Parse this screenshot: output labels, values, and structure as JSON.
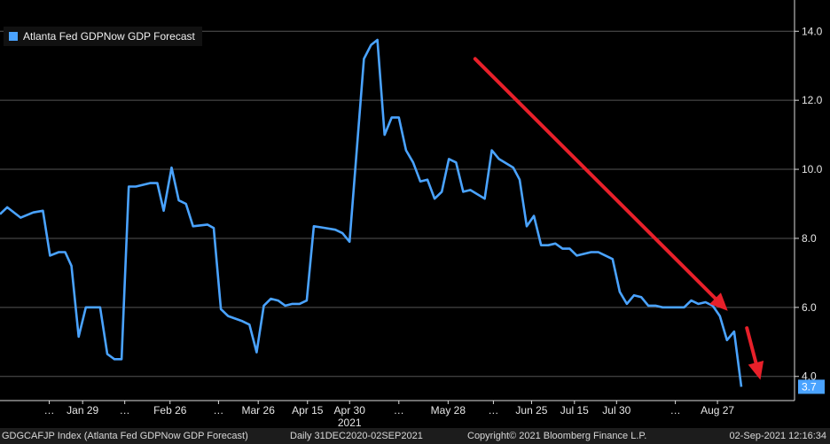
{
  "legend": {
    "label": "Atlanta Fed GDPNow GDP Forecast"
  },
  "footer": {
    "index": "GDGCAFJP Index (Atlanta Fed GDPNow GDP Forecast)",
    "range": "Daily 31DEC2020-02SEP2021",
    "copyright": "Copyright© 2021 Bloomberg Finance L.P.",
    "timestamp": "02-Sep-2021 12:16:34"
  },
  "chart_data": {
    "type": "line",
    "x_index_range": [
      0,
      100
    ],
    "ylim": [
      3.3,
      14.7
    ],
    "y_ticks": [
      "4.0",
      "6.0",
      "8.0",
      "10.0",
      "12.0",
      "14.0"
    ],
    "x_tick_labels": [
      "…",
      "Jan 29",
      "…",
      "Feb 26",
      "…",
      "Mar 26",
      "Apr 15",
      "Apr 30",
      "…",
      "May 28",
      "…",
      "Jun 25",
      "Jul 15",
      "Jul 30",
      "…",
      "Aug 27"
    ],
    "x_tick_pos": [
      6.2,
      10.4,
      15.7,
      21.4,
      27.5,
      32.5,
      38.7,
      44.0,
      50.2,
      56.4,
      62.1,
      66.9,
      72.3,
      77.6,
      85.0,
      90.3
    ],
    "year_label": "2021",
    "series": [
      {
        "name": "Atlanta Fed GDPNow GDP Forecast",
        "color": "#4aa3ff",
        "last_value_label": "3.7",
        "points": [
          [
            0.0,
            8.7
          ],
          [
            0.9,
            8.9
          ],
          [
            2.6,
            8.6
          ],
          [
            4.2,
            8.75
          ],
          [
            5.4,
            8.8
          ],
          [
            6.3,
            7.5
          ],
          [
            7.4,
            7.6
          ],
          [
            8.2,
            7.6
          ],
          [
            9.0,
            7.2
          ],
          [
            9.9,
            5.15
          ],
          [
            10.8,
            6.0
          ],
          [
            12.6,
            6.0
          ],
          [
            13.5,
            4.65
          ],
          [
            14.4,
            4.5
          ],
          [
            15.3,
            4.5
          ],
          [
            16.2,
            9.5
          ],
          [
            17.1,
            9.5
          ],
          [
            18.9,
            9.6
          ],
          [
            19.8,
            9.6
          ],
          [
            20.6,
            8.8
          ],
          [
            21.6,
            10.05
          ],
          [
            22.5,
            9.1
          ],
          [
            23.4,
            9.0
          ],
          [
            24.3,
            8.35
          ],
          [
            26.1,
            8.4
          ],
          [
            26.9,
            8.3
          ],
          [
            27.8,
            5.95
          ],
          [
            28.7,
            5.75
          ],
          [
            30.5,
            5.6
          ],
          [
            31.4,
            5.5
          ],
          [
            32.3,
            4.7
          ],
          [
            33.2,
            6.05
          ],
          [
            34.1,
            6.25
          ],
          [
            35.0,
            6.2
          ],
          [
            35.9,
            6.05
          ],
          [
            36.8,
            6.1
          ],
          [
            37.7,
            6.1
          ],
          [
            38.6,
            6.2
          ],
          [
            39.5,
            8.35
          ],
          [
            40.4,
            8.32
          ],
          [
            42.2,
            8.25
          ],
          [
            43.1,
            8.15
          ],
          [
            44.0,
            7.9
          ],
          [
            45.8,
            13.2
          ],
          [
            46.7,
            13.6
          ],
          [
            47.5,
            13.75
          ],
          [
            48.4,
            11.0
          ],
          [
            49.3,
            11.5
          ],
          [
            50.2,
            11.5
          ],
          [
            51.1,
            10.55
          ],
          [
            52.0,
            10.2
          ],
          [
            52.9,
            9.65
          ],
          [
            53.8,
            9.7
          ],
          [
            54.7,
            9.15
          ],
          [
            55.6,
            9.35
          ],
          [
            56.5,
            10.3
          ],
          [
            57.4,
            10.2
          ],
          [
            58.3,
            9.35
          ],
          [
            59.2,
            9.4
          ],
          [
            61.0,
            9.15
          ],
          [
            61.9,
            10.55
          ],
          [
            62.8,
            10.3
          ],
          [
            64.6,
            10.05
          ],
          [
            65.4,
            9.7
          ],
          [
            66.3,
            8.35
          ],
          [
            67.2,
            8.65
          ],
          [
            68.1,
            7.8
          ],
          [
            69.0,
            7.8
          ],
          [
            69.9,
            7.85
          ],
          [
            70.8,
            7.7
          ],
          [
            71.7,
            7.7
          ],
          [
            72.6,
            7.5
          ],
          [
            74.4,
            7.6
          ],
          [
            75.3,
            7.6
          ],
          [
            76.2,
            7.5
          ],
          [
            77.1,
            7.4
          ],
          [
            78.0,
            6.45
          ],
          [
            78.9,
            6.1
          ],
          [
            79.8,
            6.35
          ],
          [
            80.7,
            6.3
          ],
          [
            81.6,
            6.05
          ],
          [
            82.5,
            6.05
          ],
          [
            83.4,
            6.0
          ],
          [
            86.1,
            6.0
          ],
          [
            87.0,
            6.2
          ],
          [
            87.9,
            6.1
          ],
          [
            88.8,
            6.15
          ],
          [
            89.7,
            6.05
          ],
          [
            90.6,
            5.75
          ],
          [
            91.5,
            5.05
          ],
          [
            92.4,
            5.3
          ],
          [
            93.3,
            3.7
          ]
        ]
      }
    ],
    "annotations": [
      {
        "type": "arrow",
        "color": "#e8202a",
        "from": [
          59.8,
          13.2
        ],
        "to": [
          91.6,
          5.9
        ]
      },
      {
        "type": "arrow",
        "color": "#e8202a",
        "from": [
          94.0,
          5.4
        ],
        "to": [
          95.7,
          3.9
        ]
      }
    ]
  }
}
